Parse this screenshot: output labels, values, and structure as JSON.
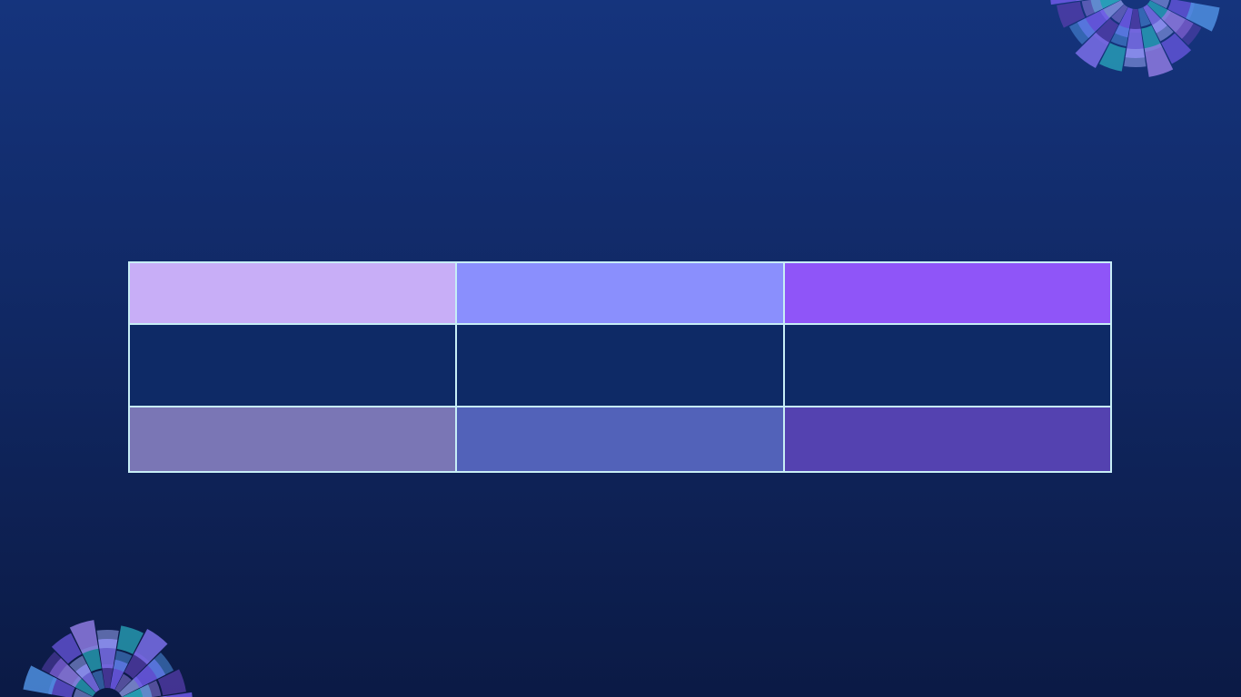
{
  "slide": {
    "background_top": "#15347d",
    "background_bottom": "#0b1a45",
    "border_color": "#c7eef6"
  },
  "table": {
    "rows": [
      {
        "cells": [
          {
            "fill": "#c8aef7"
          },
          {
            "fill": "#8a8ffd"
          },
          {
            "fill": "#8f55f8"
          }
        ]
      },
      {
        "cells": [
          {
            "fill": "#0e2a66"
          },
          {
            "fill": "#0e2a66"
          },
          {
            "fill": "#0e2a66"
          }
        ]
      },
      {
        "cells": [
          {
            "fill": "#7a76b5"
          },
          {
            "fill": "#5262b9"
          },
          {
            "fill": "#5442b0"
          }
        ]
      }
    ]
  },
  "decorations": {
    "palette": [
      "#9ba7f5",
      "#6f5ae8",
      "#4f8fe0",
      "#2bb0c2",
      "#8e7ae0",
      "#5a3fb0",
      "#7a6fe8"
    ]
  }
}
